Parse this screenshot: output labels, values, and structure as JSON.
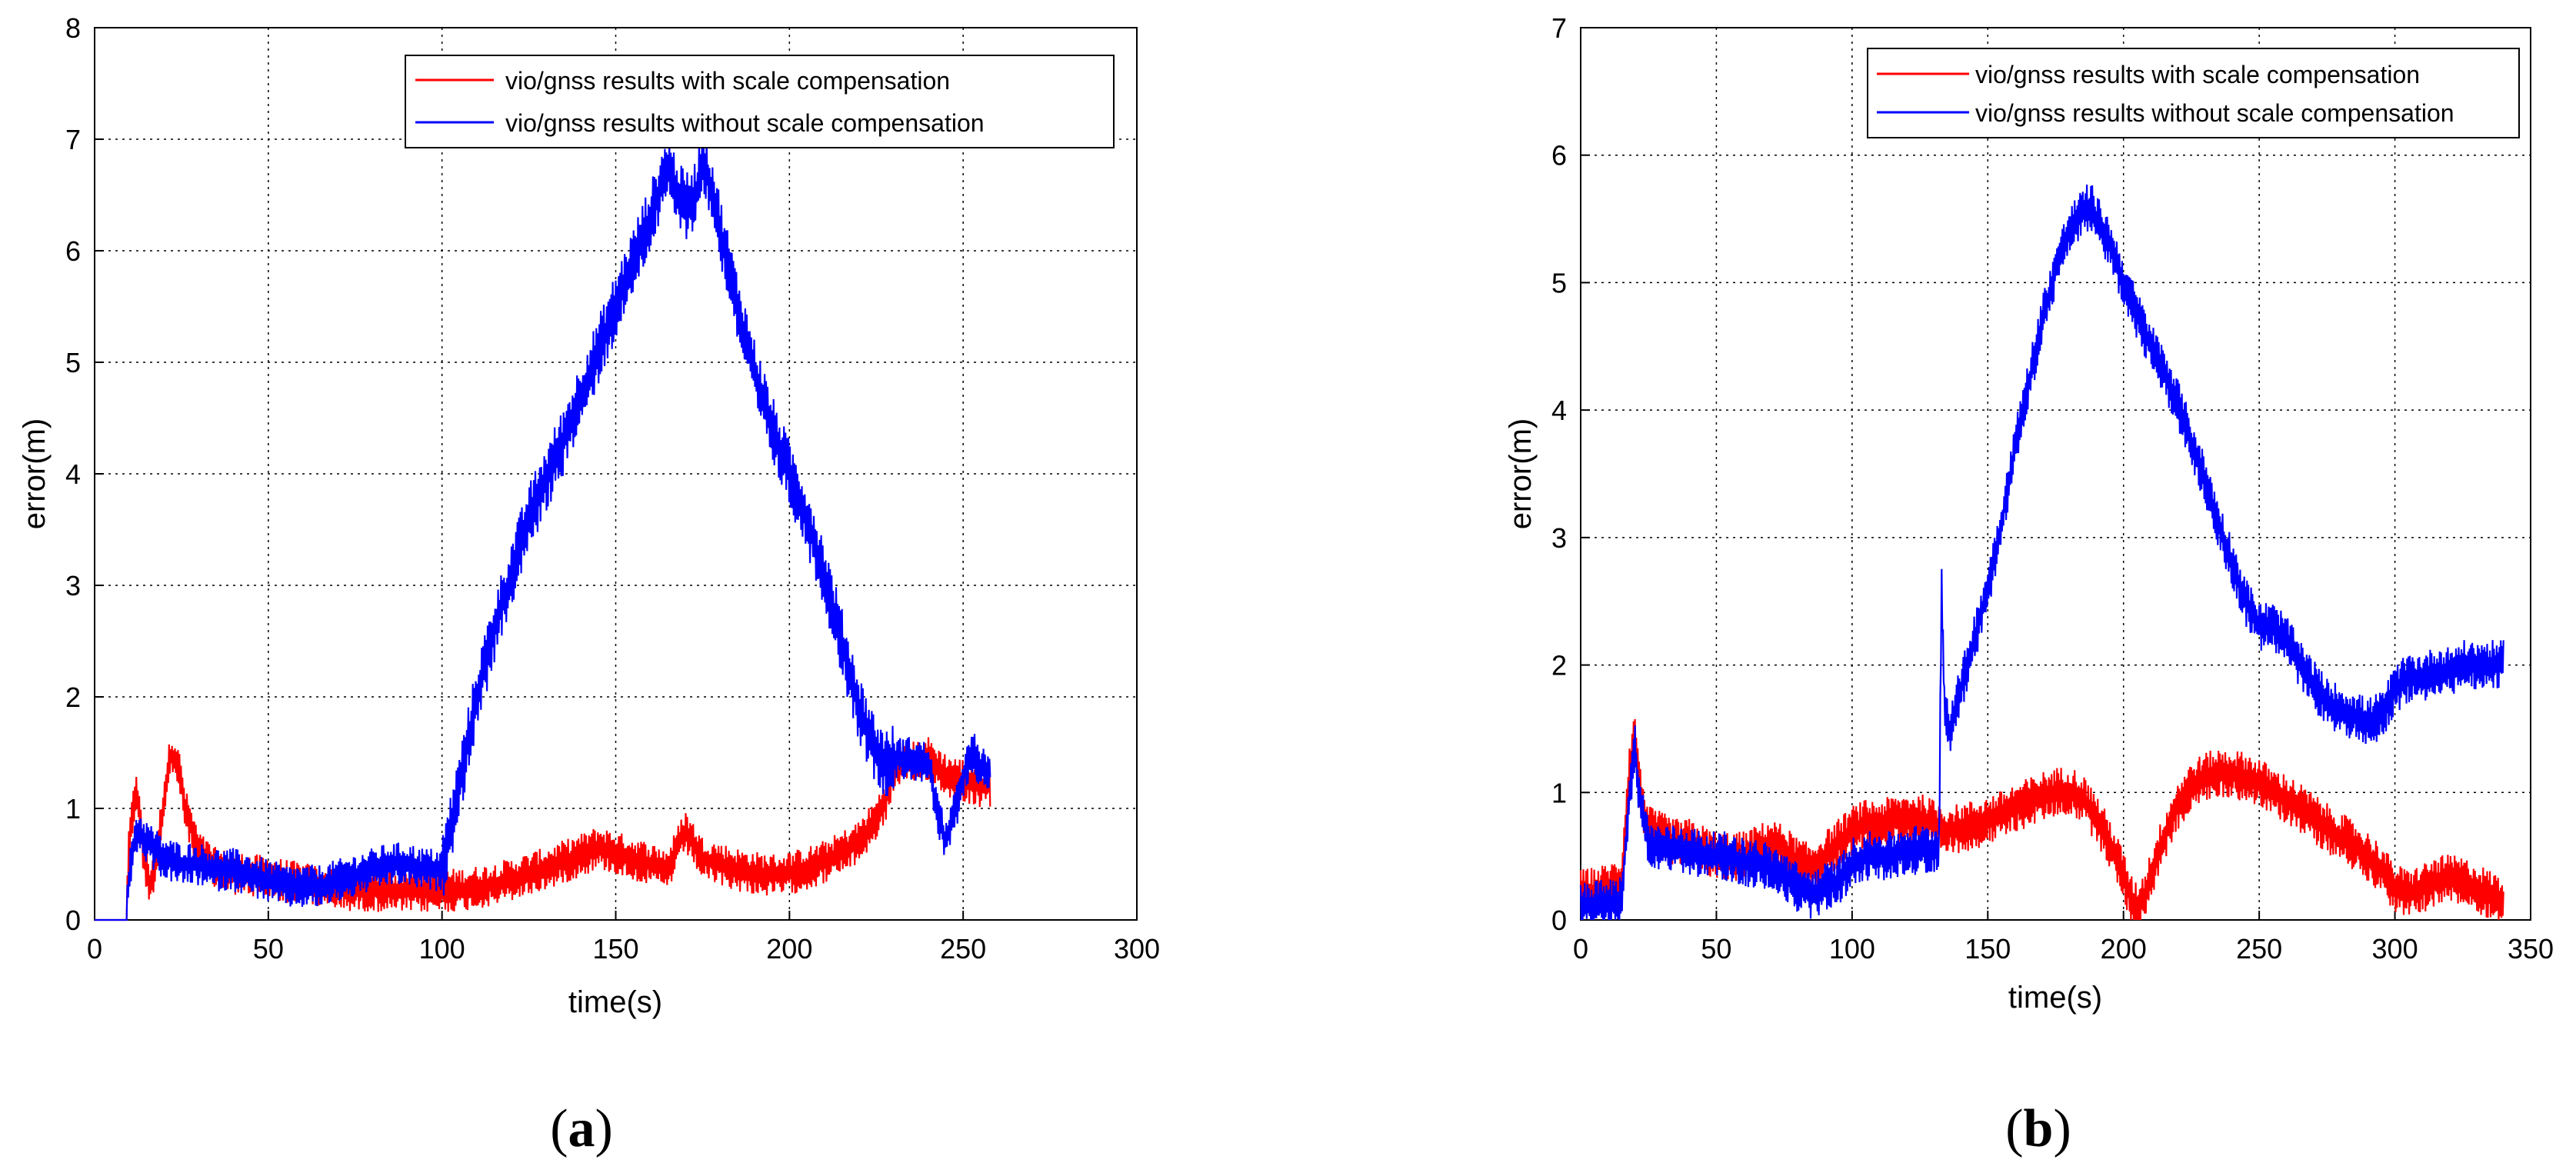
{
  "chart_data": [
    {
      "id": "a",
      "type": "line",
      "caption_open": "(",
      "caption_letter": "a",
      "caption_close": ")",
      "xlabel": "time(s)",
      "ylabel": "error(m)",
      "xlim": [
        0,
        300
      ],
      "ylim": [
        0,
        8
      ],
      "xticks": [
        0,
        50,
        100,
        150,
        200,
        250,
        300
      ],
      "yticks": [
        0,
        1,
        2,
        3,
        4,
        5,
        6,
        7,
        8
      ],
      "grid": true,
      "legend_position": "top-right",
      "series": [
        {
          "name": "vio/gnss results with scale compensation",
          "color": "#ff0000",
          "x": [
            0,
            9,
            10,
            12,
            14,
            16,
            18,
            20,
            22,
            24,
            26,
            28,
            30,
            35,
            40,
            45,
            50,
            55,
            60,
            65,
            70,
            75,
            80,
            85,
            90,
            95,
            100,
            105,
            110,
            115,
            120,
            125,
            130,
            135,
            140,
            145,
            150,
            155,
            160,
            165,
            170,
            175,
            180,
            185,
            190,
            195,
            200,
            205,
            210,
            215,
            220,
            225,
            228,
            230,
            235,
            240,
            245,
            250,
            255,
            258
          ],
          "y": [
            0,
            0,
            0.7,
            1.2,
            0.6,
            0.3,
            0.6,
            1.1,
            1.5,
            1.4,
            1.0,
            0.8,
            0.6,
            0.45,
            0.42,
            0.4,
            0.38,
            0.35,
            0.32,
            0.3,
            0.28,
            0.27,
            0.27,
            0.26,
            0.26,
            0.26,
            0.26,
            0.27,
            0.29,
            0.32,
            0.36,
            0.41,
            0.46,
            0.52,
            0.58,
            0.65,
            0.6,
            0.55,
            0.5,
            0.45,
            0.8,
            0.55,
            0.5,
            0.45,
            0.42,
            0.4,
            0.42,
            0.46,
            0.52,
            0.6,
            0.7,
            0.9,
            1.1,
            1.35,
            1.4,
            1.45,
            1.3,
            1.25,
            1.2,
            1.2
          ]
        },
        {
          "name": "vio/gnss results without scale compensation",
          "color": "#0000ff",
          "x": [
            0,
            9,
            10,
            12,
            15,
            20,
            25,
            30,
            35,
            40,
            45,
            50,
            55,
            60,
            65,
            70,
            75,
            80,
            85,
            90,
            95,
            100,
            105,
            110,
            115,
            120,
            125,
            130,
            135,
            140,
            145,
            150,
            155,
            160,
            165,
            168,
            170,
            173,
            175,
            178,
            180,
            185,
            190,
            195,
            200,
            205,
            210,
            215,
            220,
            225,
            228,
            230,
            232,
            235,
            240,
            243,
            245,
            248,
            250,
            253,
            255,
            258
          ],
          "y": [
            0,
            0,
            0.4,
            0.8,
            0.7,
            0.55,
            0.5,
            0.5,
            0.45,
            0.45,
            0.4,
            0.35,
            0.3,
            0.3,
            0.3,
            0.35,
            0.4,
            0.45,
            0.5,
            0.5,
            0.45,
            0.45,
            1.2,
            2.0,
            2.6,
            3.1,
            3.6,
            3.95,
            4.3,
            4.7,
            5.1,
            5.5,
            5.9,
            6.3,
            6.75,
            6.5,
            6.4,
            6.5,
            6.85,
            6.5,
            6.2,
            5.5,
            4.9,
            4.4,
            4.0,
            3.6,
            3.1,
            2.5,
            1.9,
            1.5,
            1.4,
            1.45,
            1.45,
            1.45,
            1.4,
            0.9,
            0.7,
            1.0,
            1.3,
            1.5,
            1.35,
            1.35
          ]
        }
      ]
    },
    {
      "id": "b",
      "type": "line",
      "caption_open": "(",
      "caption_letter": "b",
      "caption_close": ")",
      "xlabel": "time(s)",
      "ylabel": "error(m)",
      "xlim": [
        0,
        350
      ],
      "ylim": [
        0,
        7
      ],
      "xticks": [
        0,
        50,
        100,
        150,
        200,
        250,
        300,
        350
      ],
      "yticks": [
        0,
        1,
        2,
        3,
        4,
        5,
        6,
        7
      ],
      "grid": true,
      "legend_position": "top-right",
      "series": [
        {
          "name": "vio/gnss results with scale compensation",
          "color": "#ff0000",
          "x": [
            0,
            5,
            10,
            15,
            18,
            20,
            22,
            25,
            30,
            35,
            40,
            45,
            50,
            55,
            60,
            65,
            70,
            75,
            80,
            85,
            90,
            95,
            100,
            105,
            110,
            115,
            120,
            125,
            130,
            135,
            140,
            145,
            150,
            155,
            160,
            165,
            170,
            175,
            180,
            185,
            190,
            195,
            200,
            203,
            205,
            208,
            210,
            215,
            220,
            225,
            230,
            235,
            240,
            245,
            250,
            255,
            260,
            265,
            270,
            275,
            280,
            285,
            290,
            295,
            300,
            305,
            310,
            315,
            320,
            325,
            330,
            335,
            340
          ],
          "y": [
            0.2,
            0.22,
            0.25,
            0.3,
            1.2,
            1.45,
            1.0,
            0.7,
            0.65,
            0.6,
            0.6,
            0.55,
            0.5,
            0.5,
            0.5,
            0.55,
            0.6,
            0.55,
            0.45,
            0.4,
            0.5,
            0.6,
            0.7,
            0.75,
            0.75,
            0.78,
            0.8,
            0.8,
            0.75,
            0.7,
            0.72,
            0.75,
            0.78,
            0.82,
            0.88,
            0.92,
            0.97,
            1.0,
            1.02,
            0.95,
            0.8,
            0.6,
            0.35,
            0.15,
            0.1,
            0.2,
            0.35,
            0.65,
            0.9,
            1.05,
            1.12,
            1.15,
            1.15,
            1.12,
            1.08,
            1.0,
            0.95,
            0.88,
            0.8,
            0.72,
            0.65,
            0.58,
            0.5,
            0.4,
            0.25,
            0.2,
            0.25,
            0.3,
            0.32,
            0.3,
            0.25,
            0.2,
            0.15
          ]
        },
        {
          "name": "vio/gnss results without scale compensation",
          "color": "#0000ff",
          "x": [
            0,
            5,
            10,
            15,
            18,
            20,
            22,
            25,
            30,
            35,
            40,
            45,
            50,
            55,
            60,
            65,
            70,
            75,
            80,
            85,
            90,
            95,
            100,
            105,
            110,
            115,
            120,
            125,
            130,
            132,
            133,
            134,
            136,
            140,
            145,
            150,
            155,
            160,
            165,
            170,
            175,
            180,
            185,
            188,
            190,
            195,
            200,
            205,
            210,
            215,
            220,
            225,
            230,
            235,
            240,
            245,
            250,
            255,
            260,
            265,
            270,
            275,
            280,
            285,
            290,
            295,
            300,
            305,
            310,
            315,
            320,
            325,
            330,
            335,
            340
          ],
          "y": [
            0.1,
            0.12,
            0.12,
            0.15,
            1.0,
            1.35,
            0.9,
            0.6,
            0.55,
            0.55,
            0.55,
            0.5,
            0.5,
            0.5,
            0.45,
            0.45,
            0.4,
            0.35,
            0.25,
            0.2,
            0.25,
            0.3,
            0.45,
            0.5,
            0.5,
            0.5,
            0.55,
            0.55,
            0.55,
            0.6,
            2.6,
            1.7,
            1.5,
            1.8,
            2.2,
            2.6,
            3.1,
            3.7,
            4.2,
            4.7,
            5.1,
            5.4,
            5.55,
            5.6,
            5.5,
            5.3,
            5.0,
            4.75,
            4.5,
            4.3,
            4.05,
            3.75,
            3.45,
            3.1,
            2.8,
            2.5,
            2.3,
            2.3,
            2.2,
            2.0,
            1.85,
            1.7,
            1.65,
            1.6,
            1.55,
            1.6,
            1.8,
            1.9,
            1.9,
            1.95,
            1.95,
            2.0,
            2.0,
            2.0,
            2.0
          ]
        }
      ]
    }
  ]
}
